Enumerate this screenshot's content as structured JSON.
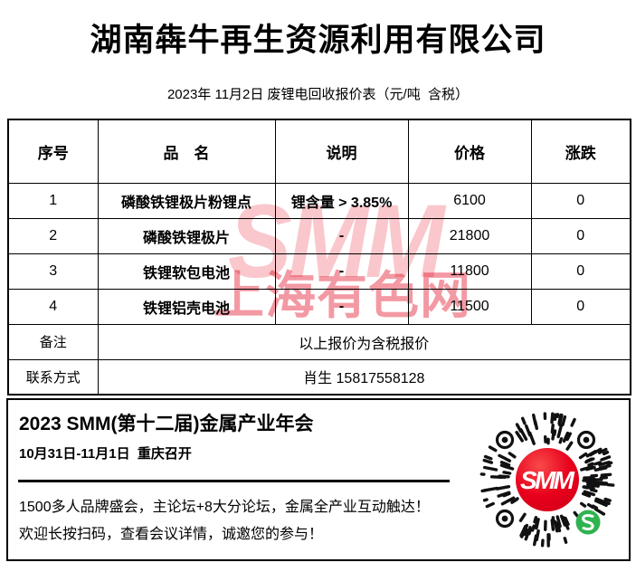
{
  "page": {
    "company": "湖南犇牛再生资源利用有限公司",
    "subtitle": "2023年 11月2日 废锂电回收报价表（元/吨  含税）"
  },
  "table": {
    "headers": {
      "no": "序号",
      "name": "品　名",
      "spec": "说明",
      "price": "价格",
      "change": "涨跌"
    },
    "rows": [
      {
        "no": "1",
        "name": "磷酸铁锂极片粉锂点",
        "spec": "锂含量 > 3.85%",
        "price": "6100",
        "change": "0"
      },
      {
        "no": "2",
        "name": "磷酸铁锂极片",
        "spec": "-",
        "price": "21800",
        "change": "0"
      },
      {
        "no": "3",
        "name": "铁锂软包电池",
        "spec": "-",
        "price": "11800",
        "change": "0"
      },
      {
        "no": "4",
        "name": "铁锂铝壳电池",
        "spec": "-",
        "price": "11500",
        "change": "0"
      }
    ],
    "remark": {
      "label": "备注",
      "value": "以上报价为含税报价"
    },
    "contact": {
      "label": "联系方式",
      "value": "肖生 15817558128"
    }
  },
  "watermark": {
    "line1": "SMM",
    "line2": "上海有色网"
  },
  "footer": {
    "event_title": "2023 SMM(第十二届)金属产业年会",
    "event_date": "10月31日-11月1日  重庆召开",
    "promo_line1": "1500多人品牌盛会，主论坛+8大分论坛，金属全产业互动触达！",
    "promo_line2": "欢迎长按扫码，查看会议详情，诚邀您的参与！",
    "qr_center_label": "SMM"
  },
  "colors": {
    "text": "#000000",
    "watermark_red": "#e20018",
    "qr_center_red": "#e8001c",
    "wechat_green": "#2fb350",
    "qr_dash": "#111111"
  }
}
